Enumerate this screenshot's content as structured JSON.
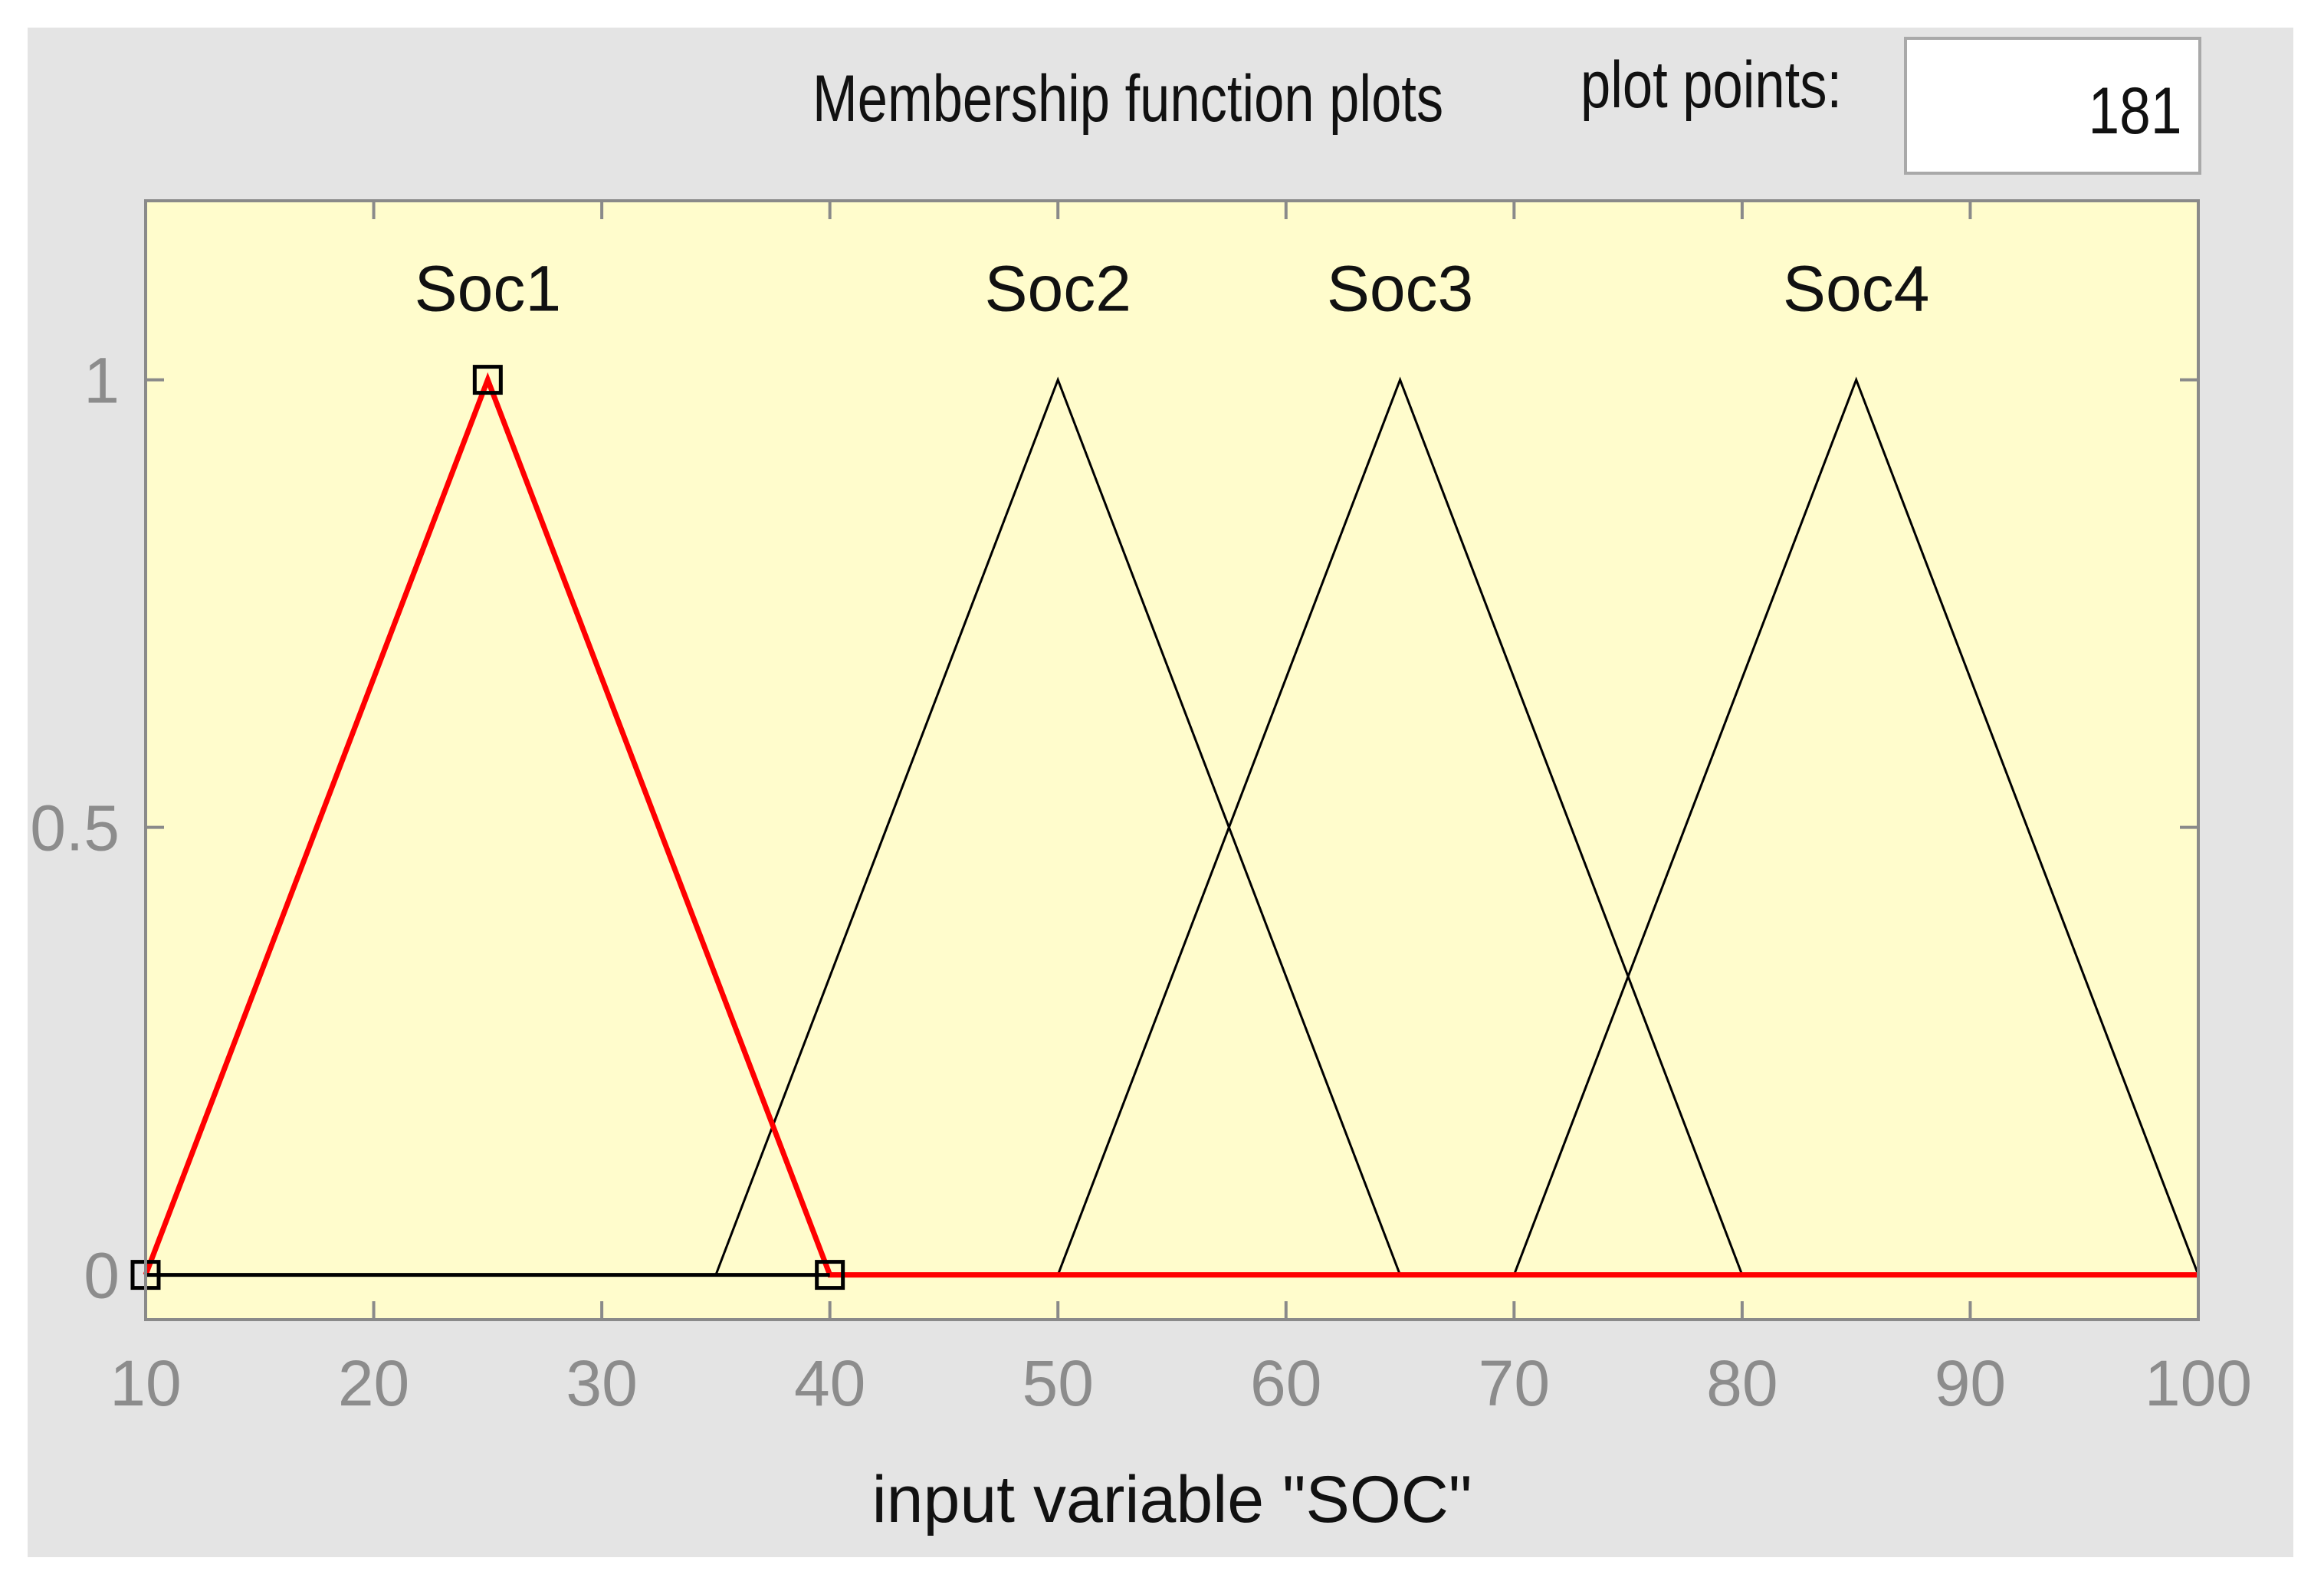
{
  "header": {
    "title": "Membership function plots",
    "plot_points_label": "plot points:",
    "plot_points_value": "181"
  },
  "chart_data": {
    "type": "line",
    "xlabel": "input variable \"SOC\"",
    "ylabel": "",
    "xlim": [
      10,
      100
    ],
    "ylim": [
      -0.05,
      1.2
    ],
    "x_ticks": [
      "10",
      "20",
      "30",
      "40",
      "50",
      "60",
      "70",
      "80",
      "90",
      "100"
    ],
    "y_ticks": [
      "0",
      "0.5",
      "1"
    ],
    "grid": false,
    "background_color": "#fffccc",
    "selected_color": "#ff0000",
    "series_color": "#000000",
    "series": [
      {
        "name": "Soc1",
        "shape": "triangle",
        "params": [
          10,
          25,
          40
        ],
        "selected": true
      },
      {
        "name": "Soc2",
        "shape": "triangle",
        "params": [
          35,
          50,
          65
        ],
        "selected": false
      },
      {
        "name": "Soc3",
        "shape": "triangle",
        "params": [
          50,
          65,
          80
        ],
        "selected": false
      },
      {
        "name": "Soc4",
        "shape": "triangle",
        "params": [
          70,
          85,
          100
        ],
        "selected": false
      }
    ]
  }
}
